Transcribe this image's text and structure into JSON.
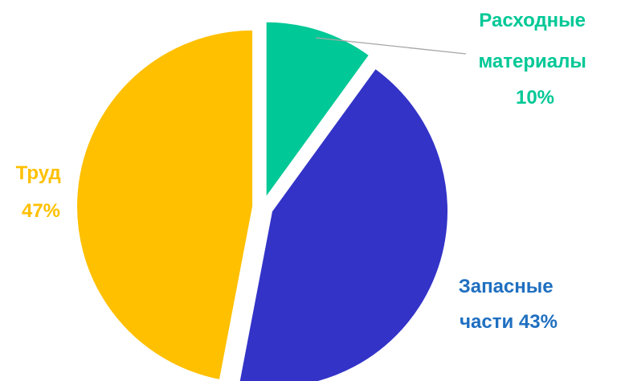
{
  "chart_data": {
    "type": "pie",
    "title": "",
    "slices": [
      {
        "name": "Расходные материалы",
        "value": 10,
        "label_lines": [
          "Расходные",
          "материалы",
          "10%"
        ],
        "color": "#00c896"
      },
      {
        "name": "Запасные части",
        "value": 43,
        "label_lines": [
          "Запасные",
          "части 43%"
        ],
        "color": "#3333c8"
      },
      {
        "name": "Труд",
        "value": 47,
        "label_lines": [
          "Труд",
          "47%"
        ],
        "color": "#ffc000"
      }
    ],
    "exploded": true,
    "start_angle_deg": 0,
    "direction": "clockwise",
    "leader_line_color": "#a6a6a6",
    "label_colors": [
      "#00c896",
      "#1f6fc0",
      "#ffc000"
    ]
  }
}
